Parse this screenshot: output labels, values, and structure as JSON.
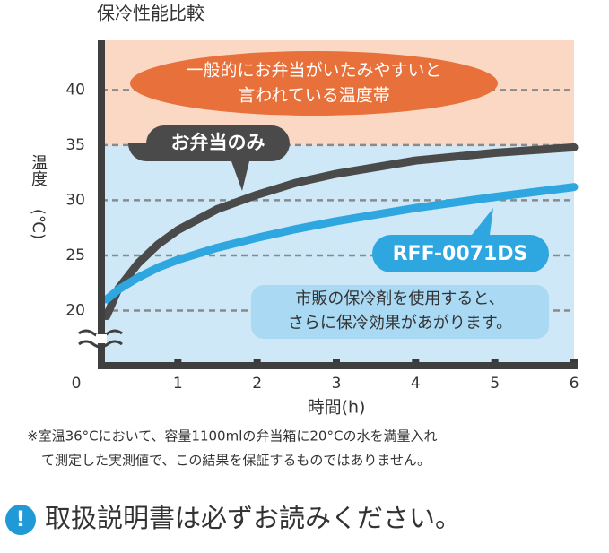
{
  "chart_data": {
    "type": "line",
    "title": "保冷性能比較",
    "xlabel": "時間(h)",
    "ylabel": [
      "温度",
      "(℃)"
    ],
    "x": [
      0.1,
      0.25,
      0.5,
      0.75,
      1,
      1.5,
      2,
      2.5,
      3,
      4,
      5,
      6
    ],
    "series": [
      {
        "name": "お弁当のみ",
        "color": "#4a4a4a",
        "values": [
          19.5,
          22,
          24.3,
          26,
          27.3,
          29.2,
          30.5,
          31.6,
          32.4,
          33.6,
          34.3,
          34.8
        ]
      },
      {
        "name": "RFF-0071DS",
        "color": "#2ea7e0",
        "values": [
          21,
          21.9,
          23,
          23.9,
          24.6,
          25.7,
          26.6,
          27.4,
          28.1,
          29.3,
          30.3,
          31.2
        ]
      }
    ],
    "xlim": [
      0,
      6
    ],
    "xticks": [
      0,
      1,
      2,
      3,
      4,
      5,
      6
    ],
    "ylim": [
      15,
      44.5
    ],
    "yticks": [
      20,
      25,
      30,
      35,
      40
    ],
    "grid": true,
    "bands": [
      {
        "from": 35,
        "to": 44.5,
        "color": "#fbd8c4"
      },
      {
        "from": 15,
        "to": 35,
        "color": "#cfe8f7"
      }
    ],
    "annotations": [
      [
        "一般的にお弁当がいたみやすいと",
        "言われている温度帯"
      ],
      [
        "市販の保冷剤を使用すると、",
        "さらに保冷効果があがります。"
      ]
    ],
    "notes": [
      "※室温36°Cにおいて、容量1100mlの弁当箱に20°Cの水を満量入れ",
      "て測定した実測値で、この結果を保証するものではありません。"
    ],
    "notice": "取扱説明書は必ずお読みください。"
  }
}
